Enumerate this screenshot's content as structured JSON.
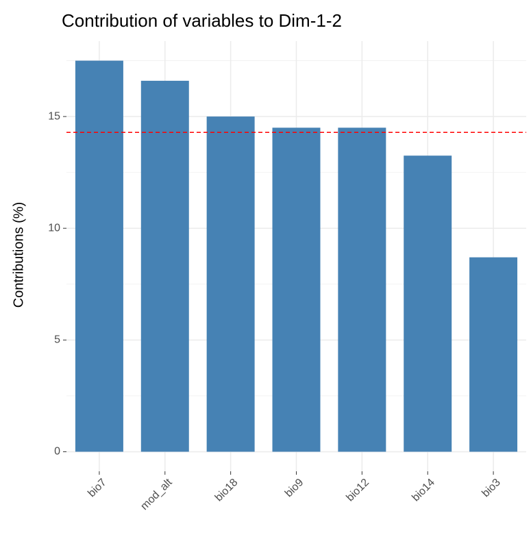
{
  "chart_data": {
    "type": "bar",
    "title": "Contribution of variables to Dim-1-2",
    "y_label": "Contributions (%)",
    "categories": [
      "bio7",
      "mod_alt",
      "bio18",
      "bio9",
      "bio12",
      "bio14",
      "bio3"
    ],
    "values": [
      17.5,
      16.6,
      15.0,
      14.5,
      14.5,
      13.25,
      8.7
    ],
    "color": "#4682b4",
    "ylim": [
      -0.875,
      18.375
    ],
    "yticks": [
      0,
      5,
      10,
      15
    ],
    "minor_yticks": [
      2.5,
      7.5,
      12.5,
      17.5
    ],
    "grid": true,
    "reference_line": {
      "value": 14.29,
      "color": "#ff0000",
      "style": "dashed"
    }
  }
}
